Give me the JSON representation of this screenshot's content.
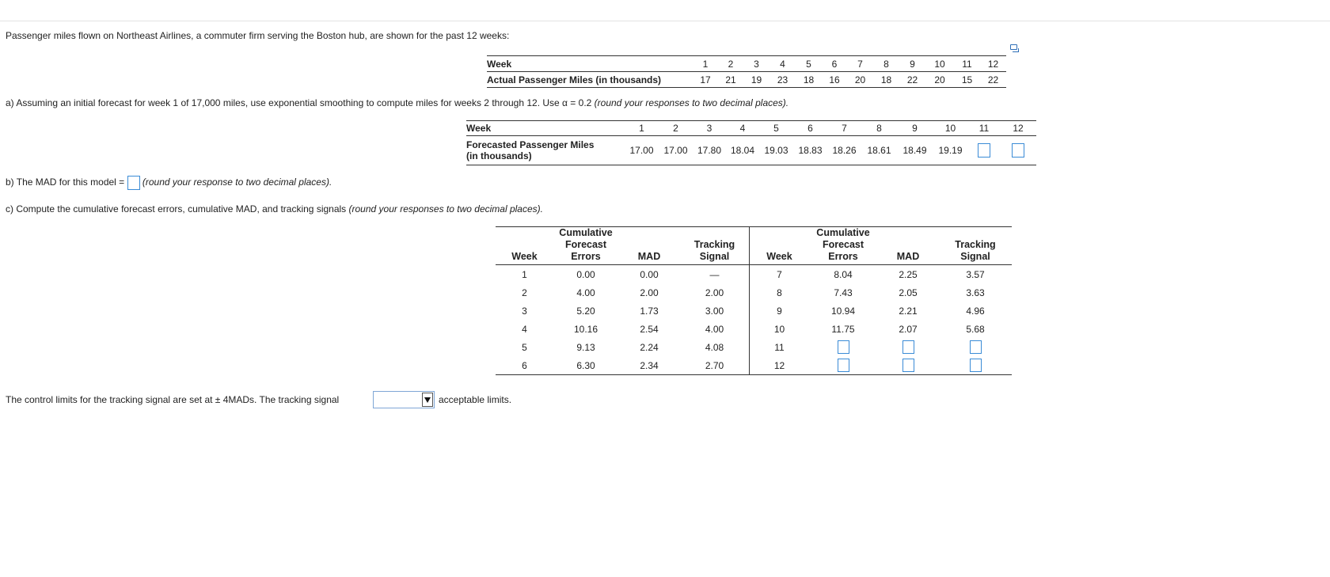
{
  "intro": "Passenger miles flown on Northeast Airlines, a commuter firm serving the Boston hub, are shown for the past 12 weeks:",
  "table1": {
    "row1_label": "Week",
    "row2_label": "Actual Passenger Miles (in thousands)",
    "weeks": [
      "1",
      "2",
      "3",
      "4",
      "5",
      "6",
      "7",
      "8",
      "9",
      "10",
      "11",
      "12"
    ],
    "actual": [
      "17",
      "21",
      "19",
      "23",
      "18",
      "16",
      "20",
      "18",
      "22",
      "20",
      "15",
      "22"
    ]
  },
  "part_a": {
    "text": "a) Assuming an initial forecast for week 1 of 17,000 miles, use exponential smoothing to compute miles for weeks 2 through 12. Use α = 0.2 ",
    "note": "(round your responses to two decimal places)."
  },
  "table2": {
    "row1_label": "Week",
    "row2_label_line1": "Forecasted Passenger Miles",
    "row2_label_line2": "(in thousands)",
    "weeks": [
      "1",
      "2",
      "3",
      "4",
      "5",
      "6",
      "7",
      "8",
      "9",
      "10",
      "11",
      "12"
    ],
    "forecast": [
      "17.00",
      "17.00",
      "17.80",
      "18.04",
      "19.03",
      "18.83",
      "18.26",
      "18.61",
      "18.49",
      "19.19"
    ]
  },
  "part_b": {
    "text": "b) The MAD for this model =",
    "note": "(round your response to two decimal places)."
  },
  "part_c": {
    "text": "c) Compute the cumulative forecast errors, cumulative MAD, and tracking signals ",
    "note": "(round your responses to two decimal places)."
  },
  "table3": {
    "headers": {
      "week": "Week",
      "cfe_l1": "Cumulative",
      "cfe_l2": "Forecast",
      "cfe_l3": "Errors",
      "mad": "MAD",
      "ts_l1": "Tracking",
      "ts_l2": "Signal"
    },
    "left": [
      {
        "week": "1",
        "cfe": "0.00",
        "mad": "0.00",
        "ts": "—"
      },
      {
        "week": "2",
        "cfe": "4.00",
        "mad": "2.00",
        "ts": "2.00"
      },
      {
        "week": "3",
        "cfe": "5.20",
        "mad": "1.73",
        "ts": "3.00"
      },
      {
        "week": "4",
        "cfe": "10.16",
        "mad": "2.54",
        "ts": "4.00"
      },
      {
        "week": "5",
        "cfe": "9.13",
        "mad": "2.24",
        "ts": "4.08"
      },
      {
        "week": "6",
        "cfe": "6.30",
        "mad": "2.34",
        "ts": "2.70"
      }
    ],
    "right": [
      {
        "week": "7",
        "cfe": "8.04",
        "mad": "2.25",
        "ts": "3.57"
      },
      {
        "week": "8",
        "cfe": "7.43",
        "mad": "2.05",
        "ts": "3.63"
      },
      {
        "week": "9",
        "cfe": "10.94",
        "mad": "2.21",
        "ts": "4.96"
      },
      {
        "week": "10",
        "cfe": "11.75",
        "mad": "2.07",
        "ts": "5.68"
      },
      {
        "week": "11",
        "cfe": "",
        "mad": "",
        "ts": ""
      },
      {
        "week": "12",
        "cfe": "",
        "mad": "",
        "ts": ""
      }
    ]
  },
  "control": {
    "text_before": "The control limits for the tracking signal are set at ± 4MADs. The tracking signal",
    "dropdown_value": "",
    "text_after": "acceptable limits."
  }
}
